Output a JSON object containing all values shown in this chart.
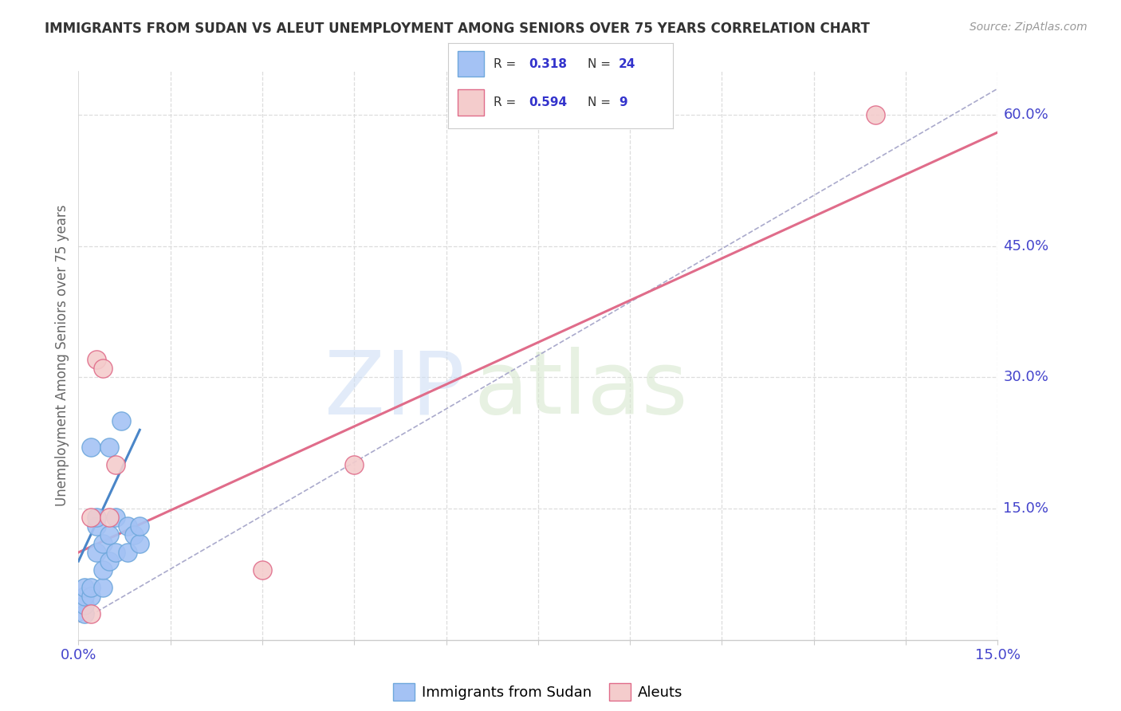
{
  "title": "IMMIGRANTS FROM SUDAN VS ALEUT UNEMPLOYMENT AMONG SENIORS OVER 75 YEARS CORRELATION CHART",
  "source": "Source: ZipAtlas.com",
  "ylabel": "Unemployment Among Seniors over 75 years",
  "xlim": [
    0.0,
    0.15
  ],
  "ylim": [
    0.0,
    0.65
  ],
  "xticks": [
    0.0,
    0.015,
    0.03,
    0.045,
    0.06,
    0.075,
    0.09,
    0.105,
    0.12,
    0.135,
    0.15
  ],
  "xtick_labels": [
    "0.0%",
    "",
    "",
    "",
    "",
    "",
    "",
    "",
    "",
    "",
    "15.0%"
  ],
  "ytick_positions": [
    0.0,
    0.15,
    0.3,
    0.45,
    0.6
  ],
  "ytick_labels": [
    "",
    "15.0%",
    "30.0%",
    "45.0%",
    "60.0%"
  ],
  "blue_color": "#6fa8dc",
  "pink_color": "#e06c8a",
  "blue_fill": "#a4c2f4",
  "pink_fill": "#f4cccc",
  "R_blue": 0.318,
  "N_blue": 24,
  "R_pink": 0.594,
  "N_pink": 9,
  "blue_scatter_x": [
    0.001,
    0.001,
    0.001,
    0.001,
    0.002,
    0.002,
    0.002,
    0.003,
    0.003,
    0.003,
    0.004,
    0.004,
    0.004,
    0.005,
    0.005,
    0.005,
    0.006,
    0.006,
    0.007,
    0.008,
    0.008,
    0.009,
    0.01,
    0.01
  ],
  "blue_scatter_y": [
    0.03,
    0.04,
    0.05,
    0.06,
    0.05,
    0.06,
    0.22,
    0.1,
    0.13,
    0.14,
    0.06,
    0.08,
    0.11,
    0.09,
    0.12,
    0.22,
    0.1,
    0.14,
    0.25,
    0.1,
    0.13,
    0.12,
    0.11,
    0.13
  ],
  "pink_scatter_x": [
    0.002,
    0.002,
    0.003,
    0.004,
    0.005,
    0.006,
    0.03,
    0.045,
    0.13
  ],
  "pink_scatter_y": [
    0.03,
    0.14,
    0.32,
    0.31,
    0.14,
    0.2,
    0.08,
    0.2,
    0.6
  ],
  "blue_line_x": [
    0.0,
    0.01
  ],
  "blue_line_y": [
    0.09,
    0.24
  ],
  "pink_line_x": [
    0.0,
    0.15
  ],
  "pink_line_y": [
    0.1,
    0.58
  ],
  "dashed_line_x": [
    0.0,
    0.15
  ],
  "dashed_line_y": [
    0.02,
    0.63
  ],
  "watermark_zip": "ZIP",
  "watermark_atlas": "atlas",
  "background_color": "#ffffff",
  "grid_color": "#dddddd"
}
